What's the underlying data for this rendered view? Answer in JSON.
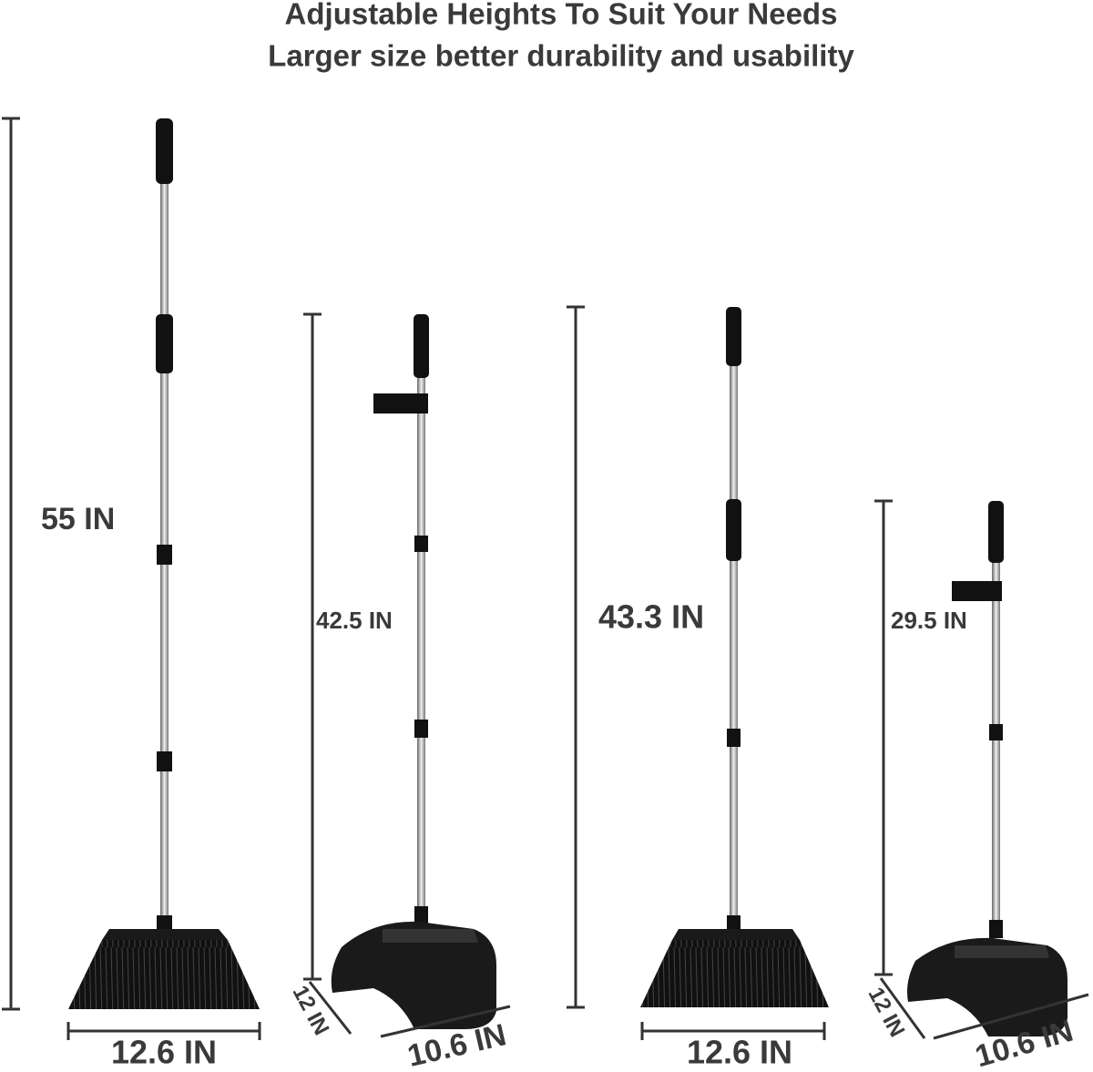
{
  "header": {
    "title_lines": [
      "Adjustable Heights To Suit Your Needs",
      "Larger size better durability and usability"
    ]
  },
  "products": [
    {
      "height": "55 IN",
      "width": "12.6 IN"
    },
    {
      "height": "42.5 IN",
      "depth": "12 IN",
      "width": "10.6 IN"
    },
    {
      "height": "43.3 IN",
      "width": "12.6 IN"
    },
    {
      "height": "29.5 IN",
      "depth": "12 IN",
      "width": "10.6 IN"
    }
  ]
}
